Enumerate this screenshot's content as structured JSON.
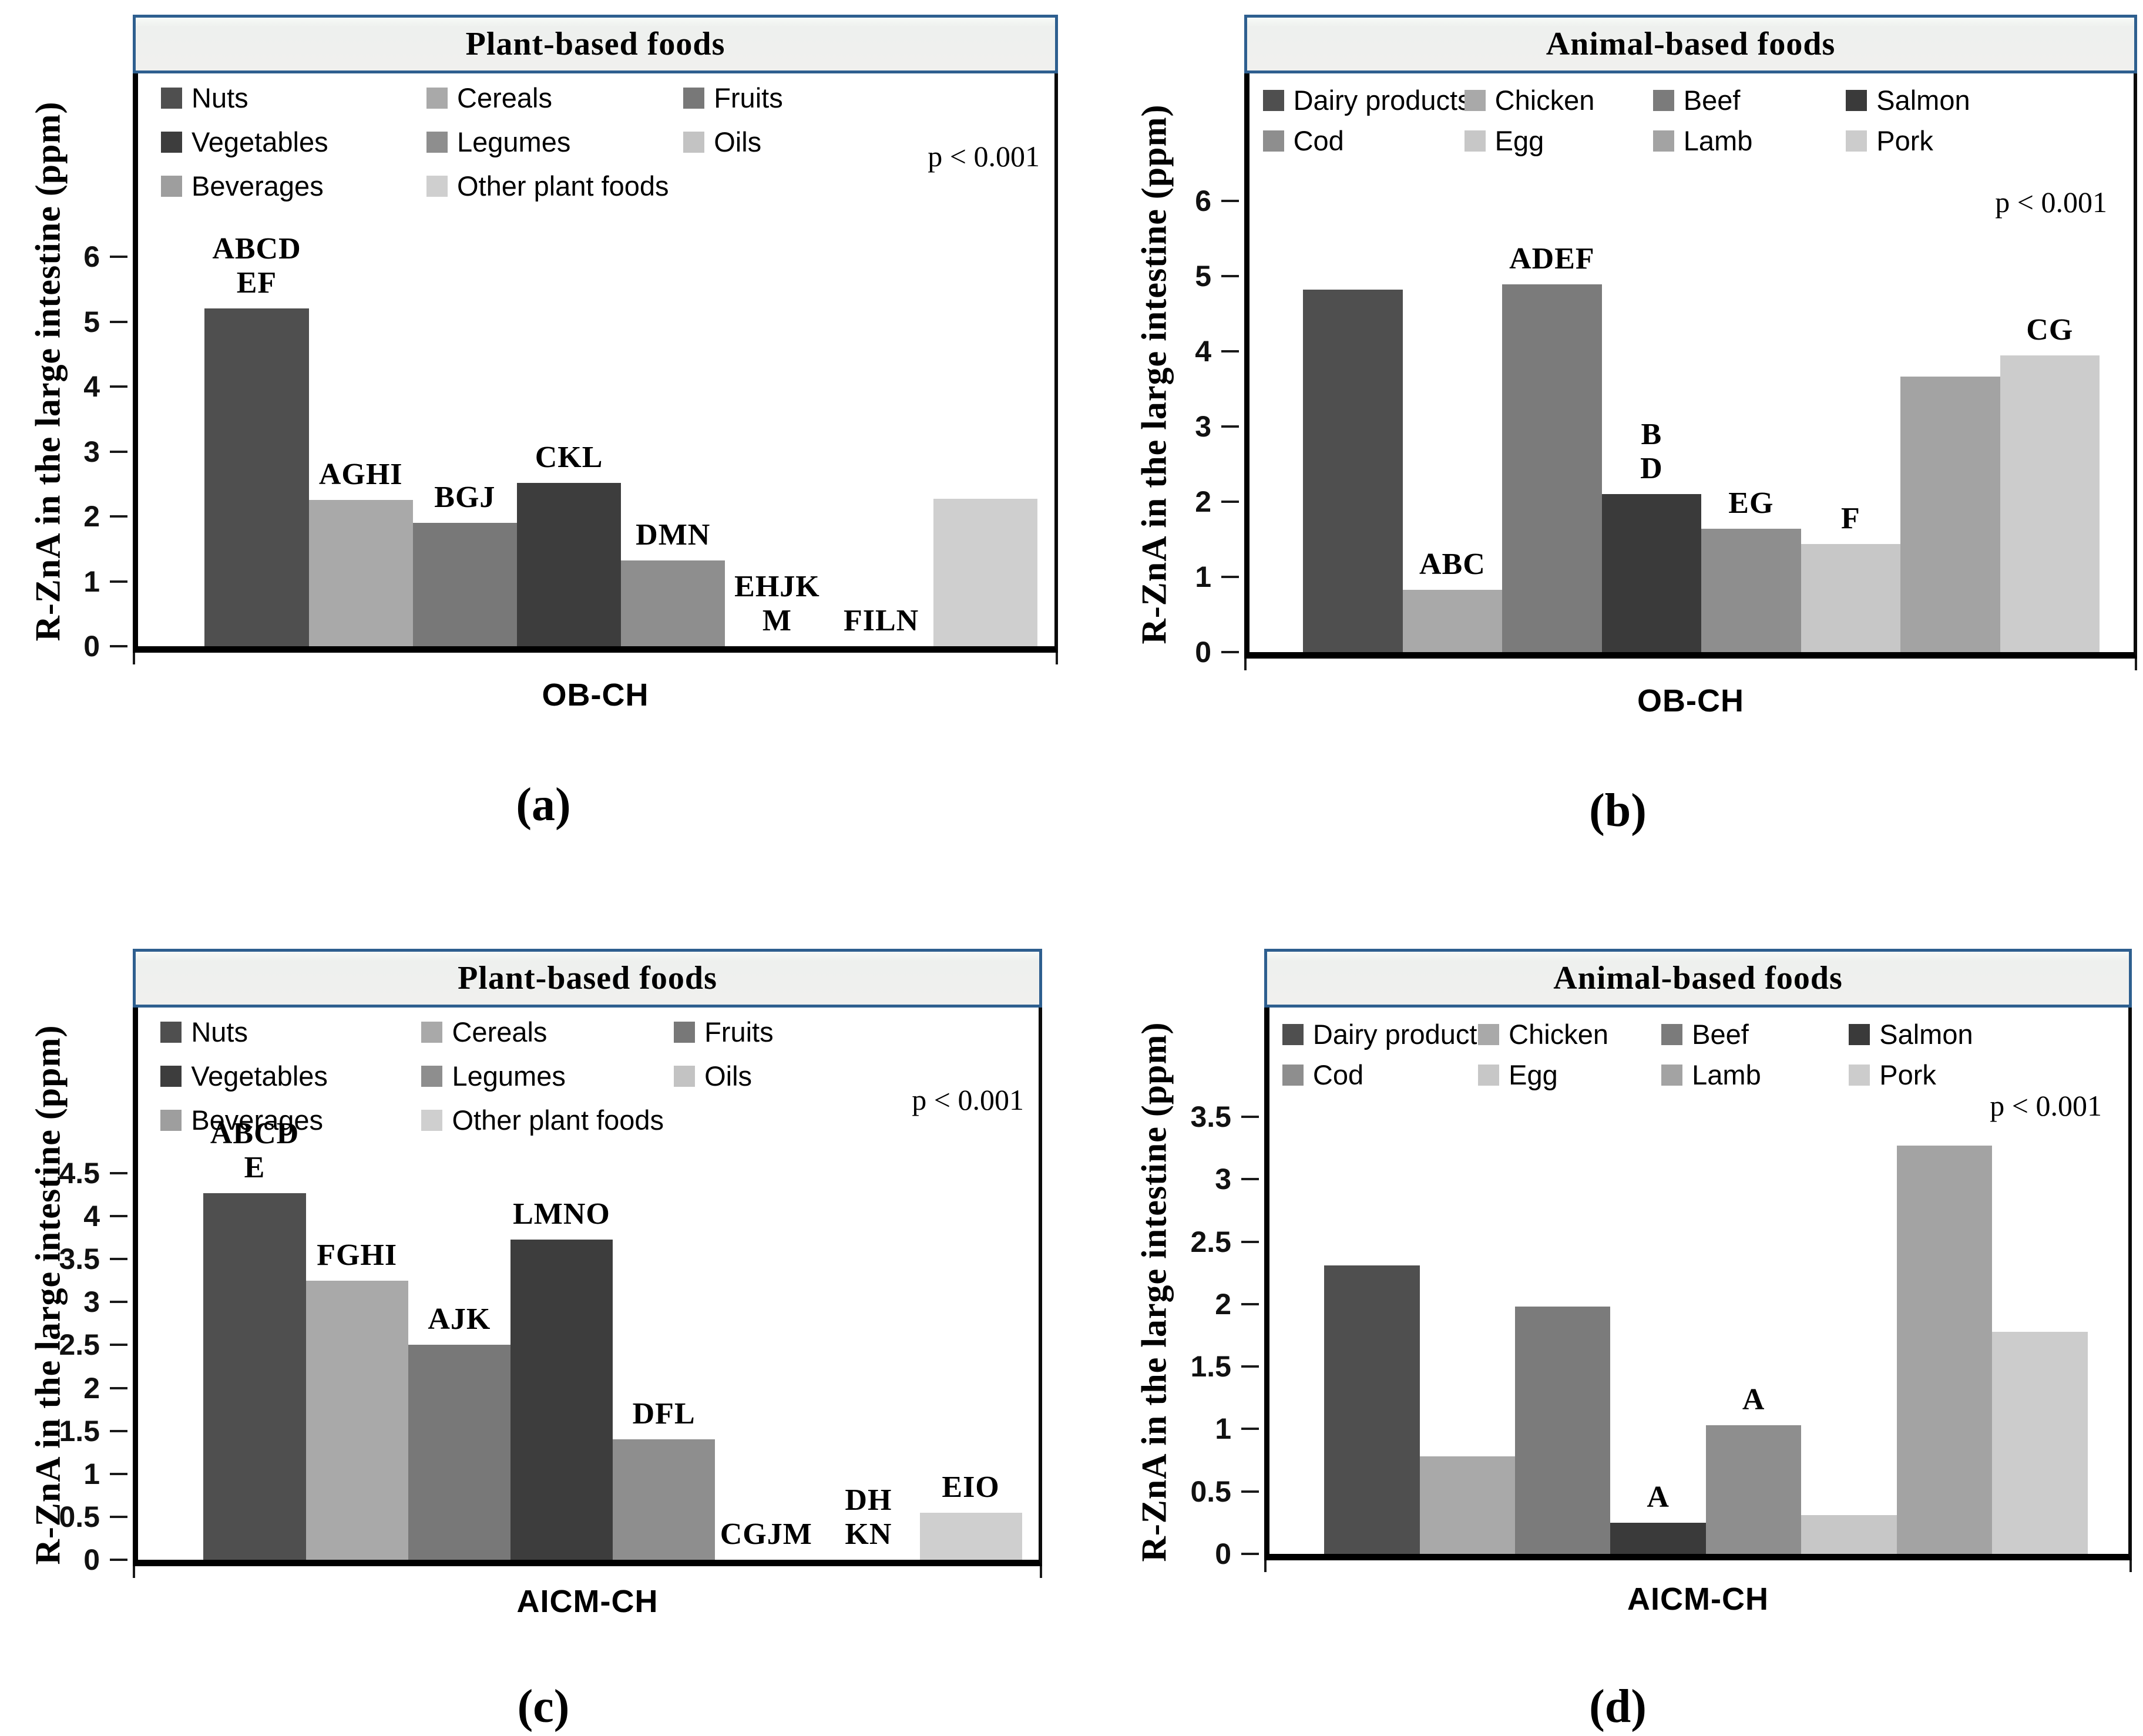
{
  "figure": {
    "description": "Four-panel grayscale bar chart figure comparing R-ZnA in the large intestine (ppm) for plant-based and animal-based foods in OB-CH and AICM-CH groups"
  },
  "chart_data": [
    {
      "id": "a",
      "type": "bar",
      "caption": "(a)",
      "title": "Plant-based foods",
      "ylabel": "R-ZnA in the large intestine (ppm)",
      "xlabel": "OB-CH",
      "p_label": "p < 0.001",
      "legend_position": "top",
      "grid": false,
      "y_ticks": [
        "0",
        "1",
        "2",
        "3",
        "4",
        "5",
        "6"
      ],
      "ylim": [
        0,
        6
      ],
      "series": [
        {
          "name": "Nuts",
          "color": "#4f4f4f",
          "value": 5.2,
          "label": "ABCD\nEF"
        },
        {
          "name": "Cereals",
          "color": "#a9a9a9",
          "value": 2.25,
          "label": "AGHI"
        },
        {
          "name": "Fruits",
          "color": "#787878",
          "value": 1.9,
          "label": "BGJ"
        },
        {
          "name": "Vegetables",
          "color": "#3d3d3d",
          "value": 2.52,
          "label": "CKL"
        },
        {
          "name": "Legumes",
          "color": "#8e8e8e",
          "value": 1.32,
          "label": "DMN"
        },
        {
          "name": "Oils",
          "color": "#c3c3c3",
          "value": 0,
          "label": "EHJK\nM"
        },
        {
          "name": "Beverages",
          "color": "#9e9e9e",
          "value": 0,
          "label": "FILN"
        },
        {
          "name": "Other plant foods",
          "color": "#cfcfcf",
          "value": 2.27,
          "label": ""
        }
      ]
    },
    {
      "id": "b",
      "type": "bar",
      "caption": "(b)",
      "title": "Animal-based foods",
      "ylabel": "R-ZnA in the large intestine (ppm)",
      "xlabel": "OB-CH",
      "p_label": "p < 0.001",
      "legend_position": "top",
      "grid": false,
      "y_ticks": [
        "0",
        "1",
        "2",
        "3",
        "4",
        "5",
        "6"
      ],
      "ylim": [
        0,
        6
      ],
      "series": [
        {
          "name": "Dairy products",
          "color": "#4f4f4f",
          "value": 4.82,
          "label": ""
        },
        {
          "name": "Chicken",
          "color": "#a9a9a9",
          "value": 0.83,
          "label": "ABC"
        },
        {
          "name": "Beef",
          "color": "#7b7b7b",
          "value": 4.89,
          "label": "ADEF"
        },
        {
          "name": "Salmon",
          "color": "#3a3a3a",
          "value": 2.1,
          "label": "B\nD"
        },
        {
          "name": "Cod",
          "color": "#8e8e8e",
          "value": 1.64,
          "label": "EG"
        },
        {
          "name": "Egg",
          "color": "#c7c7c7",
          "value": 1.44,
          "label": "F"
        },
        {
          "name": "Lamb",
          "color": "#a3a3a3",
          "value": 3.66,
          "label": ""
        },
        {
          "name": "Pork",
          "color": "#cccccc",
          "value": 3.94,
          "label": "CG"
        }
      ]
    },
    {
      "id": "c",
      "type": "bar",
      "caption": "(c)",
      "title": "Plant-based foods",
      "ylabel": "R-ZnA in the large intestine (ppm)",
      "xlabel": "AICM-CH",
      "p_label": "p < 0.001",
      "legend_position": "top",
      "grid": false,
      "y_ticks": [
        "0",
        "0.5",
        "1",
        "1.5",
        "2",
        "2.5",
        "3",
        "3.5",
        "4",
        "4.5"
      ],
      "ylim": [
        0,
        4.5
      ],
      "series": [
        {
          "name": "Nuts",
          "color": "#4f4f4f",
          "value": 4.27,
          "label": "ABCD\nE"
        },
        {
          "name": "Cereals",
          "color": "#a9a9a9",
          "value": 3.25,
          "label": "FGHI"
        },
        {
          "name": "Fruits",
          "color": "#787878",
          "value": 2.5,
          "label": "AJK"
        },
        {
          "name": "Vegetables",
          "color": "#3d3d3d",
          "value": 3.73,
          "label": "LMNO"
        },
        {
          "name": "Legumes",
          "color": "#8e8e8e",
          "value": 1.4,
          "label": "DFL"
        },
        {
          "name": "Oils",
          "color": "#c3c3c3",
          "value": 0,
          "label": "CGJM"
        },
        {
          "name": "Beverages",
          "color": "#9e9e9e",
          "value": 0,
          "label": "DH\nKN"
        },
        {
          "name": "Other plant foods",
          "color": "#cfcfcf",
          "value": 0.55,
          "label": "EIO"
        }
      ]
    },
    {
      "id": "d",
      "type": "bar",
      "caption": "(d)",
      "title": "Animal-based foods",
      "ylabel": "R-ZnA in the large intestine (ppm)",
      "xlabel": "AICM-CH",
      "p_label": "p < 0.001",
      "legend_position": "top",
      "grid": false,
      "y_ticks": [
        "0",
        "0.5",
        "1",
        "1.5",
        "2",
        "2.5",
        "3",
        "3.5"
      ],
      "ylim": [
        0,
        3.5
      ],
      "series": [
        {
          "name": "Dairy products",
          "color": "#4f4f4f",
          "value": 2.31,
          "label": ""
        },
        {
          "name": "Chicken",
          "color": "#a9a9a9",
          "value": 0.78,
          "label": ""
        },
        {
          "name": "Beef",
          "color": "#7b7b7b",
          "value": 1.98,
          "label": ""
        },
        {
          "name": "Salmon",
          "color": "#3a3a3a",
          "value": 0.25,
          "label": "A"
        },
        {
          "name": "Cod",
          "color": "#8e8e8e",
          "value": 1.03,
          "label": "A"
        },
        {
          "name": "Egg",
          "color": "#c7c7c7",
          "value": 0.31,
          "label": ""
        },
        {
          "name": "Lamb",
          "color": "#a3a3a3",
          "value": 3.27,
          "label": ""
        },
        {
          "name": "Pork",
          "color": "#cccccc",
          "value": 1.78,
          "label": ""
        }
      ]
    }
  ]
}
